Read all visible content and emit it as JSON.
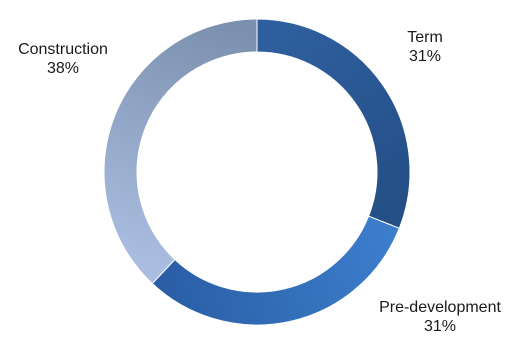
{
  "chart_data": {
    "type": "pie",
    "variant": "donut",
    "title": "",
    "slices": [
      {
        "label": "Term",
        "value": 31,
        "display": "31%",
        "colors": [
          "#2f5f9e",
          "#244f86"
        ]
      },
      {
        "label": "Pre-development",
        "value": 31,
        "display": "31%",
        "colors": [
          "#3c7dcc",
          "#2a5fa6"
        ]
      },
      {
        "label": "Construction",
        "value": 38,
        "display": "38%",
        "colors": [
          "#a9bde0",
          "#7b8fae"
        ]
      }
    ],
    "legend": "none",
    "data_labels": "outside"
  }
}
